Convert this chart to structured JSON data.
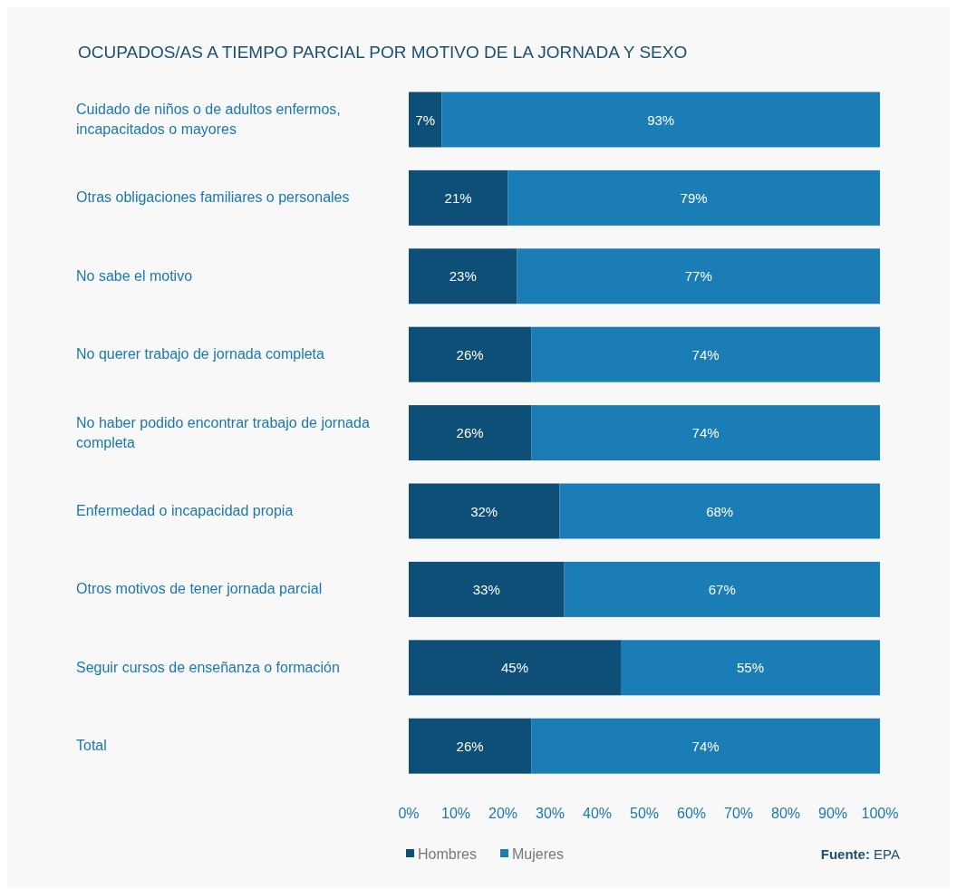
{
  "chart_data": {
    "type": "bar",
    "orientation": "horizontal",
    "stacked": true,
    "title": "OCUPADOS/AS A TIEMPO PARCIAL POR MOTIVO DE LA JORNADA Y SEXO",
    "categories": [
      "Cuidado de niños o de adultos enfermos, incapacitados o mayores",
      "Otras obligaciones familiares o personales",
      "No sabe el motivo",
      "No querer trabajo de jornada completa",
      "No haber podido encontrar trabajo de jornada completa",
      "Enfermedad o incapacidad propia",
      "Otros motivos de tener jornada parcial",
      "Seguir cursos de enseñanza o formación",
      "Total"
    ],
    "series": [
      {
        "name": "Hombres",
        "color": "#0d4f76",
        "values": [
          7,
          21,
          23,
          26,
          26,
          32,
          33,
          45,
          26
        ],
        "value_labels": [
          "7%",
          "21%",
          "23%",
          "26%",
          "26%",
          "32%",
          "33%",
          "45%",
          "26%"
        ]
      },
      {
        "name": "Mujeres",
        "color": "#1a7db6",
        "values": [
          93,
          79,
          77,
          74,
          74,
          68,
          67,
          55,
          74
        ],
        "value_labels": [
          "93%",
          "79%",
          "77%",
          "74%",
          "74%",
          "68%",
          "67%",
          "55%",
          "74%"
        ]
      }
    ],
    "xlim": [
      0,
      100
    ],
    "xticks": [
      {
        "value": 0,
        "label": "0%"
      },
      {
        "value": 10,
        "label": "10%"
      },
      {
        "value": 20,
        "label": "20%"
      },
      {
        "value": 30,
        "label": "30%"
      },
      {
        "value": 40,
        "label": "40%"
      },
      {
        "value": 50,
        "label": "50%"
      },
      {
        "value": 60,
        "label": "60%"
      },
      {
        "value": 70,
        "label": "70%"
      },
      {
        "value": 80,
        "label": "80%"
      },
      {
        "value": 90,
        "label": "90%"
      },
      {
        "value": 100,
        "label": "100%"
      }
    ],
    "legend": "bottom left",
    "annotations": [
      "Fuente: EPA"
    ]
  }
}
